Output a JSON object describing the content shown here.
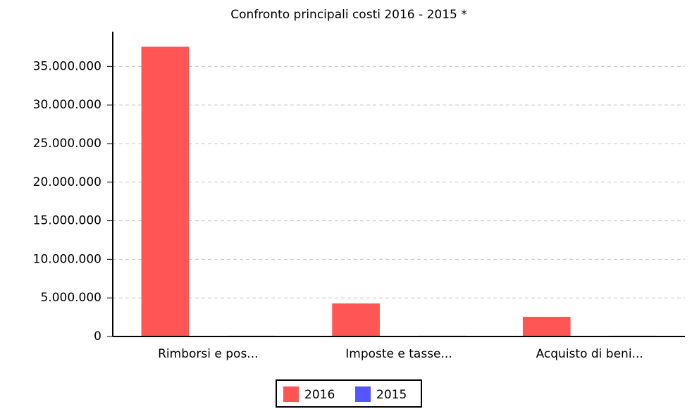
{
  "chart_data": {
    "type": "bar",
    "title": "Confronto principali costi 2016 - 2015 *",
    "categories": [
      "Rimborsi e pos...",
      "Imposte e tasse...",
      "Acquisto di beni..."
    ],
    "series": [
      {
        "name": "2016",
        "color": "#ff5555",
        "values": [
          37550000,
          4280000,
          2550000
        ]
      },
      {
        "name": "2015",
        "color": "#5555ff",
        "values": [
          100000,
          100000,
          100000
        ]
      }
    ],
    "ylim": [
      0,
      39500000
    ],
    "yticks": [
      0,
      {
        "value": 5000000,
        "label": "5.000.000"
      },
      {
        "value": 10000000,
        "label": "10.000.000"
      },
      {
        "value": 15000000,
        "label": "15.000.000"
      },
      {
        "value": 20000000,
        "label": "20.000.000"
      },
      {
        "value": 25000000,
        "label": "25.000.000"
      },
      {
        "value": 30000000,
        "label": "30.000.000"
      },
      {
        "value": 35000000,
        "label": "35.000.000"
      }
    ],
    "grid": true
  }
}
